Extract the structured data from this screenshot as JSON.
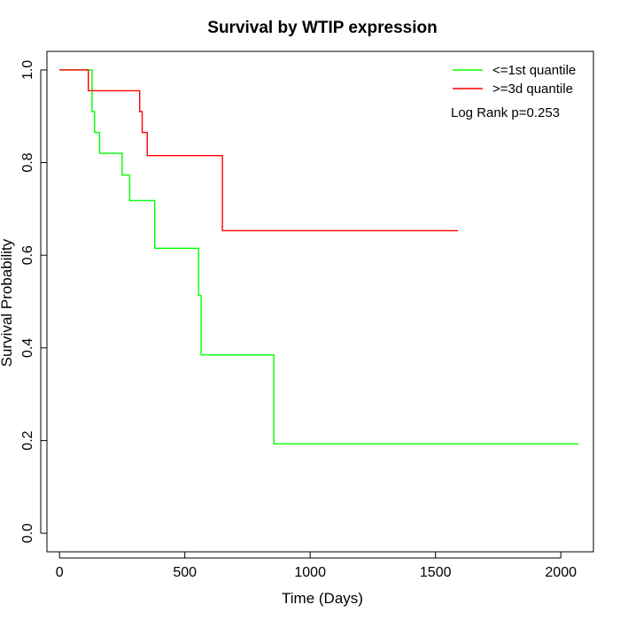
{
  "chart_data": {
    "type": "line",
    "title": "Survival by WTIP expression",
    "xlabel": "Time (Days)",
    "ylabel": "Survival Probability",
    "xlim": [
      -50,
      2130
    ],
    "ylim": [
      -0.04,
      1.04
    ],
    "xticks": [
      0,
      500,
      1000,
      1500,
      2000
    ],
    "yticks": [
      0.0,
      0.2,
      0.4,
      0.6,
      0.8,
      1.0
    ],
    "xtick_labels": [
      "0",
      "500",
      "1000",
      "1500",
      "2000"
    ],
    "ytick_labels": [
      "0.0",
      "0.2",
      "0.4",
      "0.6",
      "0.8",
      "1.0"
    ],
    "grid": false,
    "legend_position": "top-right",
    "series": [
      {
        "name": "<=1st quantile",
        "color": "#00ff00",
        "x": [
          0,
          130,
          140,
          160,
          250,
          280,
          380,
          555,
          565,
          855,
          1360,
          2070
        ],
        "y": [
          1.0,
          0.91,
          0.865,
          0.82,
          0.773,
          0.718,
          0.615,
          0.513,
          0.385,
          0.193,
          0.193,
          0.193
        ]
      },
      {
        "name": ">=3d quantile",
        "color": "#ff0000",
        "x": [
          0,
          115,
          320,
          330,
          350,
          650,
          1590
        ],
        "y": [
          1.0,
          0.955,
          0.91,
          0.865,
          0.815,
          0.653,
          0.653
        ]
      }
    ],
    "annotations": [
      "Log Rank p=0.253"
    ]
  }
}
